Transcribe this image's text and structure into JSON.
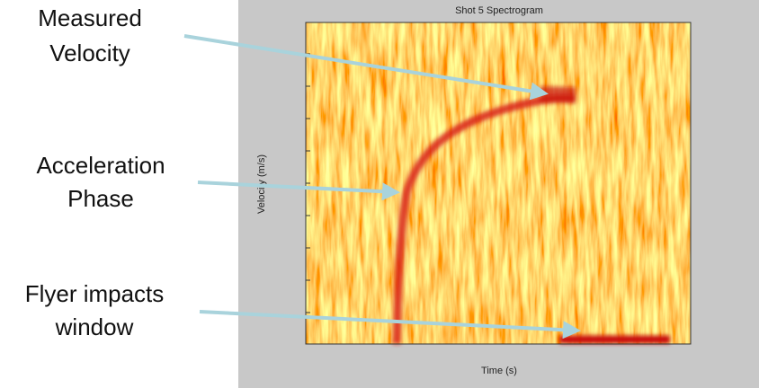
{
  "plot": {
    "title": "Shot 5 Spectrogram",
    "x_label": "Time (s)",
    "y_label": "Velocity (m/s)"
  },
  "annotations": [
    {
      "lines": [
        "Measured",
        "Velocity"
      ]
    },
    {
      "lines": [
        "Acceleration",
        "Phase"
      ]
    },
    {
      "lines": [
        "Flyer impacts",
        "window"
      ]
    }
  ]
}
